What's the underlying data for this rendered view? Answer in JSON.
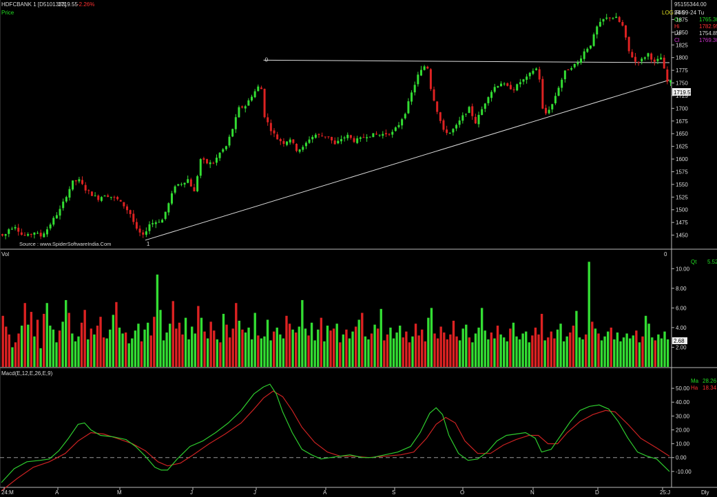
{
  "header": {
    "symbol": "HDFCBANK 1 [D5101333]",
    "last": "1719.55",
    "change": "-2.26%",
    "price_label": "Price",
    "scale_label": "LOG",
    "chart_name": "IRIS"
  },
  "ohlc_box": {
    "volume": "95155344.00",
    "date": "24-09-24 Tu",
    "rows": [
      {
        "label": "Op",
        "value": "1765.30",
        "color": "#22dd22"
      },
      {
        "label": "Hi",
        "value": "1782.95",
        "color": "#ff3030"
      },
      {
        "label": "Lo",
        "value": "1754.85",
        "color": "#dddddd"
      },
      {
        "label": "Cl",
        "value": "1769.30",
        "color": "#cc33cc"
      }
    ]
  },
  "source": "Source : www.SpiderSoftwareIndia.Com",
  "markers": {
    "low_marker": "1",
    "high_marker": "0",
    "vol_marker": "0"
  },
  "volume_panel": {
    "label": "Vol",
    "qty_label": "Qt",
    "qty_value": "5.52",
    "last_value": "2.68"
  },
  "macd_panel": {
    "label": "Macd(E,12,E,26,E,9)",
    "ma_label": "Ma",
    "ma_value": "28.26",
    "ha_label": "Ha",
    "ha_value": "18.34"
  },
  "x_axis": {
    "labels": [
      "24:M",
      "A",
      "M",
      "J",
      "J",
      "A",
      "S",
      "O",
      "N",
      "D",
      "25:J"
    ],
    "right_label": "Dly"
  },
  "colors": {
    "up": "#33dd33",
    "down": "#dd2222",
    "macd": "#2ecc2e",
    "signal": "#cc2222",
    "line": "#dddddd"
  },
  "chart_data": {
    "type": "candlestick",
    "price_axis": {
      "ticks": [
        1450,
        1475,
        1500,
        1525,
        1550,
        1575,
        1600,
        1625,
        1650,
        1675,
        1700,
        1725,
        1750,
        1775,
        1800,
        1825,
        1850,
        1875
      ],
      "range": [
        1425,
        1900
      ]
    },
    "price_series": [
      [
        0,
        1452
      ],
      [
        3,
        1447
      ],
      [
        6,
        1462
      ],
      [
        10,
        1468
      ],
      [
        14,
        1451
      ],
      [
        18,
        1449
      ],
      [
        22,
        1456
      ],
      [
        26,
        1448
      ],
      [
        30,
        1462
      ],
      [
        34,
        1482
      ],
      [
        38,
        1500
      ],
      [
        42,
        1528
      ],
      [
        46,
        1555
      ],
      [
        50,
        1558
      ],
      [
        54,
        1540
      ],
      [
        58,
        1530
      ],
      [
        62,
        1522
      ],
      [
        66,
        1530
      ],
      [
        70,
        1526
      ],
      [
        74,
        1520
      ],
      [
        78,
        1508
      ],
      [
        82,
        1492
      ],
      [
        86,
        1460
      ],
      [
        90,
        1448
      ],
      [
        94,
        1472
      ],
      [
        98,
        1476
      ],
      [
        102,
        1480
      ],
      [
        106,
        1512
      ],
      [
        110,
        1548
      ],
      [
        114,
        1552
      ],
      [
        118,
        1560
      ],
      [
        122,
        1535
      ],
      [
        126,
        1600
      ],
      [
        130,
        1592
      ],
      [
        134,
        1592
      ],
      [
        138,
        1612
      ],
      [
        142,
        1625
      ],
      [
        146,
        1660
      ],
      [
        150,
        1700
      ],
      [
        154,
        1705
      ],
      [
        158,
        1725
      ],
      [
        162,
        1742
      ],
      [
        164,
        1738
      ],
      [
        166,
        1685
      ],
      [
        170,
        1658
      ],
      [
        174,
        1640
      ],
      [
        178,
        1632
      ],
      [
        182,
        1640
      ],
      [
        186,
        1618
      ],
      [
        190,
        1622
      ],
      [
        194,
        1640
      ],
      [
        198,
        1648
      ],
      [
        202,
        1645
      ],
      [
        206,
        1645
      ],
      [
        210,
        1628
      ],
      [
        214,
        1640
      ],
      [
        218,
        1646
      ],
      [
        222,
        1636
      ],
      [
        226,
        1640
      ],
      [
        230,
        1646
      ],
      [
        234,
        1648
      ],
      [
        238,
        1648
      ],
      [
        242,
        1650
      ],
      [
        246,
        1652
      ],
      [
        250,
        1668
      ],
      [
        254,
        1692
      ],
      [
        258,
        1730
      ],
      [
        262,
        1765
      ],
      [
        266,
        1783
      ],
      [
        268,
        1780
      ],
      [
        270,
        1740
      ],
      [
        274,
        1695
      ],
      [
        278,
        1655
      ],
      [
        282,
        1652
      ],
      [
        286,
        1665
      ],
      [
        290,
        1684
      ],
      [
        294,
        1700
      ],
      [
        298,
        1672
      ],
      [
        302,
        1698
      ],
      [
        306,
        1725
      ],
      [
        310,
        1742
      ],
      [
        314,
        1750
      ],
      [
        318,
        1742
      ],
      [
        322,
        1738
      ],
      [
        326,
        1752
      ],
      [
        330,
        1760
      ],
      [
        334,
        1775
      ],
      [
        336,
        1778
      ],
      [
        338,
        1758
      ],
      [
        340,
        1698
      ],
      [
        342,
        1690
      ],
      [
        346,
        1708
      ],
      [
        350,
        1742
      ],
      [
        354,
        1772
      ],
      [
        358,
        1782
      ],
      [
        362,
        1790
      ],
      [
        366,
        1812
      ],
      [
        370,
        1826
      ],
      [
        374,
        1860
      ],
      [
        378,
        1875
      ],
      [
        382,
        1880
      ],
      [
        386,
        1878
      ],
      [
        390,
        1862
      ],
      [
        394,
        1812
      ],
      [
        398,
        1792
      ],
      [
        402,
        1796
      ],
      [
        406,
        1808
      ],
      [
        410,
        1790
      ],
      [
        414,
        1800
      ],
      [
        418,
        1752
      ]
    ],
    "events": [
      {
        "x": 90,
        "price": 1440,
        "label": "1"
      },
      {
        "x": 164,
        "price": 1795,
        "label": "0"
      }
    ],
    "lines": [
      {
        "name": "resistance",
        "from": [
          164,
          1795
        ],
        "to": [
          418,
          1790
        ]
      },
      {
        "name": "support",
        "from": [
          90,
          1440
        ],
        "to": [
          418,
          1756
        ]
      }
    ],
    "volume_axis": {
      "ticks": [
        2,
        4,
        6,
        8,
        10
      ],
      "range": [
        0,
        11
      ]
    },
    "volume": [
      5.2,
      4.1,
      3.3,
      2.0,
      2.5,
      3.4,
      4.2,
      6.5,
      4.3,
      5.6,
      3.1,
      4.8,
      1.9,
      5.4,
      6.5,
      4.2,
      3.8,
      2.5,
      3.7,
      4.6,
      6.8,
      5.5,
      3.4,
      2.6,
      3.1,
      4.5,
      5.8,
      2.8,
      3.9,
      3.3,
      4.2,
      5.1,
      3.0,
      2.9,
      3.8,
      5.3,
      6.6,
      4.0,
      3.4,
      3.5,
      2.4,
      2.9,
      3.7,
      4.4,
      2.6,
      3.8,
      4.5,
      3.2,
      5.1,
      9.4,
      5.8,
      2.7,
      3.5,
      4.4,
      6.7,
      3.9,
      4.5,
      3.3,
      5.0,
      2.8,
      4.1,
      3.4,
      6.2,
      5.0,
      3.6,
      2.9,
      4.6,
      3.7,
      2.8,
      2.5,
      5.4,
      4.3,
      3.0,
      3.9,
      6.5,
      4.7,
      3.8,
      3.5,
      4.0,
      2.8,
      5.5,
      3.2,
      2.9,
      3.1,
      4.8,
      2.7,
      3.6,
      4.0,
      3.3,
      2.9,
      5.2,
      4.4,
      3.8,
      3.5,
      4.1,
      6.8,
      3.9,
      3.2,
      4.5,
      2.7,
      3.8,
      5.0,
      2.6,
      4.2,
      3.7,
      3.9,
      4.4,
      2.5,
      3.3,
      3.8,
      2.9,
      3.6,
      4.1,
      4.8,
      5.5,
      3.1,
      2.8,
      3.4,
      4.3,
      3.9,
      5.9,
      2.7,
      3.3,
      4.0,
      2.9,
      3.5,
      4.2,
      3.0,
      3.6,
      2.5,
      3.1,
      4.4,
      3.2,
      3.8,
      2.6,
      5.0,
      6.0,
      3.4,
      2.9,
      4.1,
      3.5,
      2.8,
      3.3,
      4.7,
      3.1,
      2.7,
      3.9,
      4.3,
      3.0,
      2.5,
      3.4,
      4.0,
      6.0,
      3.7,
      2.8,
      3.5,
      2.9,
      4.2,
      3.3,
      3.0,
      2.6,
      3.9,
      4.5,
      3.1,
      2.8,
      3.4,
      3.6,
      2.5,
      3.2,
      4.0,
      3.3,
      5.4,
      2.7,
      3.0,
      3.6,
      2.9,
      3.8,
      4.4,
      2.6,
      3.1,
      3.5,
      4.2,
      5.7,
      3.0,
      2.8,
      3.3,
      10.7,
      4.6,
      3.9,
      3.4,
      2.7,
      3.1,
      3.6,
      4.0,
      2.8,
      3.5,
      2.6,
      3.0,
      3.4,
      2.9,
      3.2,
      3.7,
      2.5,
      3.1,
      5.2,
      4.4,
      3.0,
      2.7,
      3.3,
      2.9,
      3.6,
      2.8
    ],
    "macd_axis": {
      "ticks": [
        -10,
        0,
        10,
        20,
        30,
        40,
        50
      ],
      "range": [
        -20,
        58
      ]
    },
    "macd": [
      [
        0,
        -18
      ],
      [
        8,
        -8
      ],
      [
        16,
        -3
      ],
      [
        24,
        -2
      ],
      [
        30,
        -1
      ],
      [
        36,
        5
      ],
      [
        42,
        14
      ],
      [
        48,
        24
      ],
      [
        52,
        25
      ],
      [
        56,
        20
      ],
      [
        62,
        16
      ],
      [
        70,
        15
      ],
      [
        78,
        13
      ],
      [
        84,
        8
      ],
      [
        90,
        1
      ],
      [
        96,
        -7
      ],
      [
        100,
        -9
      ],
      [
        104,
        -9
      ],
      [
        110,
        -1
      ],
      [
        118,
        8
      ],
      [
        126,
        12
      ],
      [
        134,
        18
      ],
      [
        142,
        25
      ],
      [
        150,
        34
      ],
      [
        158,
        46
      ],
      [
        164,
        51
      ],
      [
        168,
        53
      ],
      [
        172,
        46
      ],
      [
        176,
        33
      ],
      [
        182,
        18
      ],
      [
        188,
        6
      ],
      [
        194,
        2
      ],
      [
        200,
        -1
      ],
      [
        206,
        0
      ],
      [
        212,
        1
      ],
      [
        218,
        2
      ],
      [
        226,
        0
      ],
      [
        232,
        0
      ],
      [
        240,
        2
      ],
      [
        248,
        4
      ],
      [
        256,
        8
      ],
      [
        262,
        18
      ],
      [
        268,
        32
      ],
      [
        272,
        36
      ],
      [
        276,
        31
      ],
      [
        280,
        16
      ],
      [
        286,
        3
      ],
      [
        292,
        -2
      ],
      [
        298,
        -1
      ],
      [
        304,
        4
      ],
      [
        310,
        12
      ],
      [
        316,
        16
      ],
      [
        322,
        17
      ],
      [
        328,
        18
      ],
      [
        334,
        14
      ],
      [
        338,
        4
      ],
      [
        344,
        6
      ],
      [
        350,
        16
      ],
      [
        356,
        26
      ],
      [
        362,
        34
      ],
      [
        368,
        37
      ],
      [
        374,
        38
      ],
      [
        380,
        35
      ],
      [
        386,
        26
      ],
      [
        392,
        14
      ],
      [
        398,
        4
      ],
      [
        404,
        1
      ],
      [
        410,
        -1
      ],
      [
        418,
        -10
      ]
    ],
    "signal": [
      [
        0,
        -24
      ],
      [
        10,
        -15
      ],
      [
        20,
        -7
      ],
      [
        30,
        -3
      ],
      [
        40,
        3
      ],
      [
        48,
        12
      ],
      [
        56,
        18
      ],
      [
        64,
        17
      ],
      [
        72,
        14
      ],
      [
        82,
        10
      ],
      [
        90,
        5
      ],
      [
        98,
        -3
      ],
      [
        104,
        -6
      ],
      [
        112,
        -4
      ],
      [
        120,
        2
      ],
      [
        130,
        10
      ],
      [
        140,
        17
      ],
      [
        150,
        25
      ],
      [
        158,
        35
      ],
      [
        164,
        43
      ],
      [
        170,
        48
      ],
      [
        176,
        44
      ],
      [
        182,
        34
      ],
      [
        188,
        22
      ],
      [
        196,
        11
      ],
      [
        204,
        4
      ],
      [
        212,
        1
      ],
      [
        220,
        1
      ],
      [
        230,
        0
      ],
      [
        240,
        1
      ],
      [
        250,
        2
      ],
      [
        258,
        4
      ],
      [
        266,
        14
      ],
      [
        272,
        24
      ],
      [
        278,
        29
      ],
      [
        284,
        25
      ],
      [
        290,
        12
      ],
      [
        298,
        3
      ],
      [
        306,
        3
      ],
      [
        314,
        9
      ],
      [
        322,
        13
      ],
      [
        330,
        16
      ],
      [
        336,
        16
      ],
      [
        342,
        10
      ],
      [
        348,
        10
      ],
      [
        354,
        18
      ],
      [
        362,
        26
      ],
      [
        370,
        31
      ],
      [
        378,
        34
      ],
      [
        384,
        33
      ],
      [
        392,
        24
      ],
      [
        400,
        14
      ],
      [
        410,
        7
      ],
      [
        418,
        1
      ]
    ]
  }
}
